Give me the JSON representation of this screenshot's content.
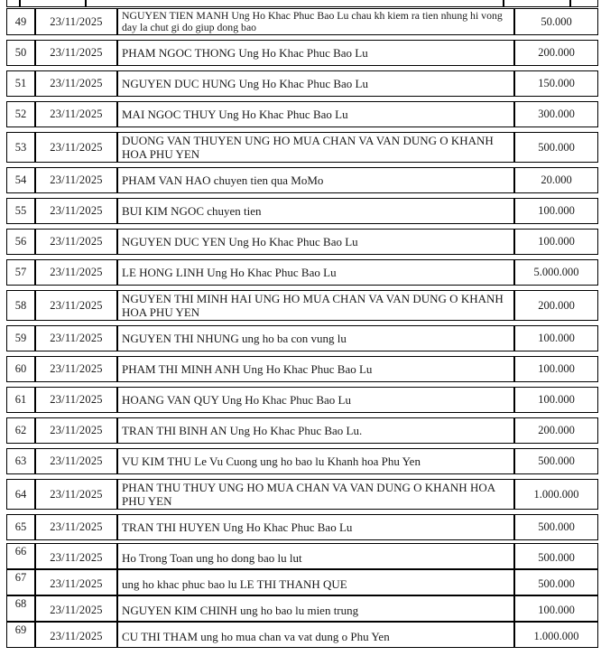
{
  "colors": {
    "background": "#ffffff",
    "border": "#000000",
    "text": "#1a1a1a"
  },
  "table": {
    "date_repeated": "23/11/2025",
    "rows": [
      {
        "no": "49",
        "date": "23/11/2025",
        "description": "NGUYEN TIEN MANH Ung Ho Khac Phuc Bao Lu chau kh kiem ra tien nhung hi vong day la chut gi do giup dong bao",
        "amount": "50.000"
      },
      {
        "no": "50",
        "date": "23/11/2025",
        "description": "PHAM NGOC THONG Ung Ho Khac Phuc Bao Lu",
        "amount": "200.000"
      },
      {
        "no": "51",
        "date": "23/11/2025",
        "description": "NGUYEN DUC HUNG Ung Ho Khac Phuc Bao Lu",
        "amount": "150.000"
      },
      {
        "no": "52",
        "date": "23/11/2025",
        "description": "MAI NGOC THUY Ung Ho Khac Phuc Bao Lu",
        "amount": "300.000"
      },
      {
        "no": "53",
        "date": "23/11/2025",
        "description": "DUONG VAN THUYEN UNG HO MUA CHAN VA VAN DUNG O KHANH HOA PHU YEN",
        "amount": "500.000"
      },
      {
        "no": "54",
        "date": "23/11/2025",
        "description": "PHAM VAN HAO chuyen tien qua MoMo",
        "amount": "20.000"
      },
      {
        "no": "55",
        "date": "23/11/2025",
        "description": "BUI KIM NGOC chuyen tien",
        "amount": "100.000"
      },
      {
        "no": "56",
        "date": "23/11/2025",
        "description": "NGUYEN DUC YEN Ung Ho Khac Phuc Bao Lu",
        "amount": "100.000"
      },
      {
        "no": "57",
        "date": "23/11/2025",
        "description": "LE HONG LINH Ung Ho Khac Phuc Bao Lu",
        "amount": "5.000.000"
      },
      {
        "no": "58",
        "date": "23/11/2025",
        "description": "NGUYEN THI MINH HAI UNG HO MUA CHAN VA VAN DUNG O KHANH HOA PHU YEN",
        "amount": "200.000"
      },
      {
        "no": "59",
        "date": "23/11/2025",
        "description": "NGUYEN THI NHUNG ung ho ba con vung lu",
        "amount": "100.000"
      },
      {
        "no": "60",
        "date": "23/11/2025",
        "description": "PHAM THI MINH ANH Ung Ho Khac Phuc Bao Lu",
        "amount": "100.000"
      },
      {
        "no": "61",
        "date": "23/11/2025",
        "description": "HOANG VAN QUY Ung Ho Khac Phuc Bao Lu",
        "amount": "100.000"
      },
      {
        "no": "62",
        "date": "23/11/2025",
        "description": "TRAN THI BINH AN Ung Ho Khac Phuc Bao Lu.",
        "amount": "200.000"
      },
      {
        "no": "63",
        "date": "23/11/2025",
        "description": "VU KIM THU Le Vu Cuong ung ho bao lu Khanh hoa Phu Yen",
        "amount": "500.000"
      },
      {
        "no": "64",
        "date": "23/11/2025",
        "description": "PHAN THU THUY UNG HO MUA CHAN VA VAN DUNG O KHANH HOA PHU YEN",
        "amount": "1.000.000"
      },
      {
        "no": "65",
        "date": "23/11/2025",
        "description": "TRAN THI HUYEN Ung Ho Khac Phuc Bao Lu",
        "amount": "500.000"
      },
      {
        "no": "66",
        "date": "23/11/2025",
        "description": "Ho Trong Toan ung ho dong bao lu lut",
        "amount": "500.000"
      },
      {
        "no": "67",
        "date": "23/11/2025",
        "description": "ung ho khac phuc bao lu LE THI THANH QUE",
        "amount": "500.000"
      },
      {
        "no": "68",
        "date": "23/11/2025",
        "description": "NGUYEN KIM CHINH ung ho bao lu mien trung",
        "amount": "100.000"
      },
      {
        "no": "69",
        "date": "23/11/2025",
        "description": "CU THI THAM ung ho mua chan va vat dung o Phu Yen",
        "amount": "1.000.000"
      }
    ]
  }
}
